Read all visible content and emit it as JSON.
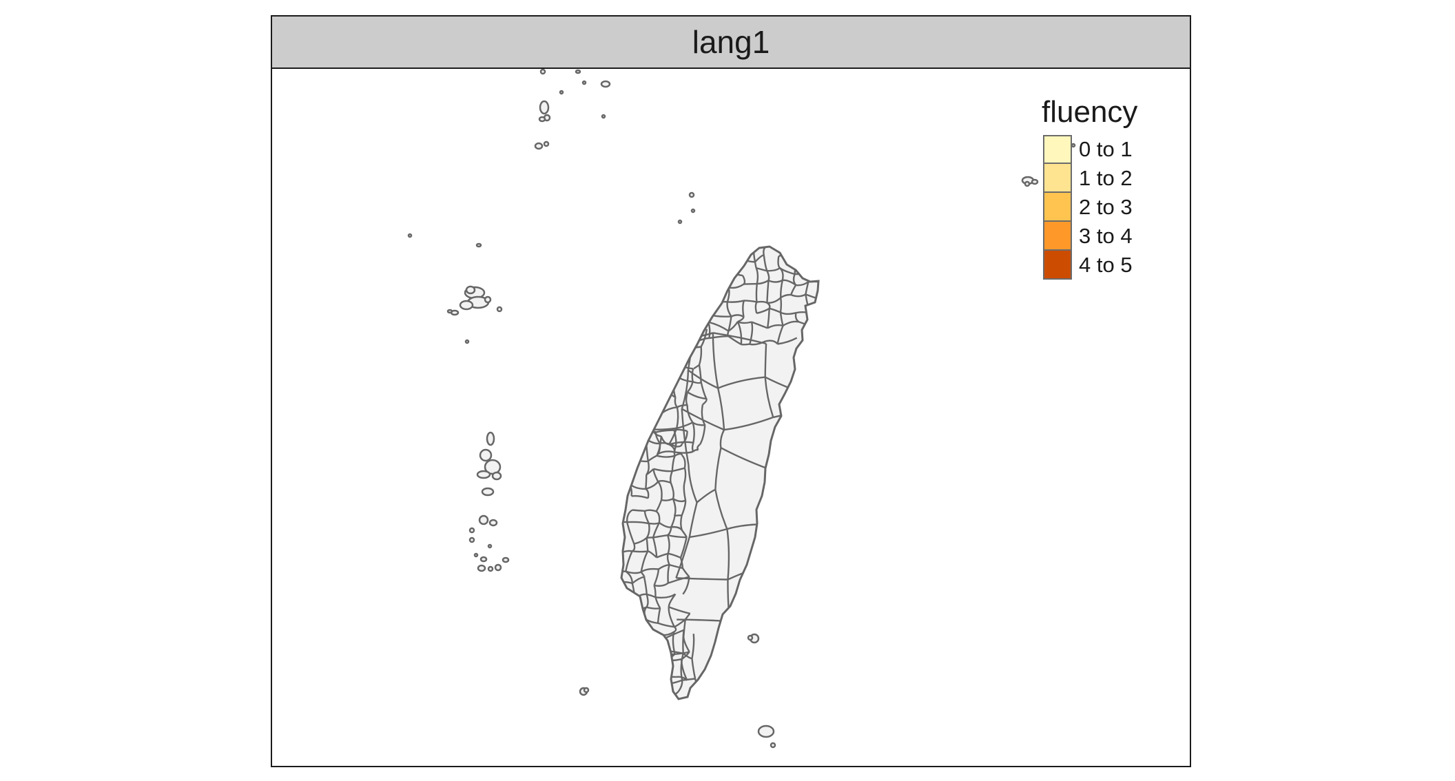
{
  "panel": {
    "title": "lang1"
  },
  "legend": {
    "title": "fluency",
    "items": [
      {
        "label": "0 to 1",
        "color": "#FFF7BC"
      },
      {
        "label": "1 to 2",
        "color": "#FEE391"
      },
      {
        "label": "2 to 3",
        "color": "#FEC44F"
      },
      {
        "label": "3 to 4",
        "color": "#FE9929"
      },
      {
        "label": "4 to 5",
        "color": "#CC4C02"
      }
    ]
  },
  "map": {
    "fill": "#F2F2F2",
    "border": "#666666",
    "variable": "lang1"
  },
  "colors": {
    "frame": "#1a1a1a",
    "strip": "#cccccc"
  }
}
